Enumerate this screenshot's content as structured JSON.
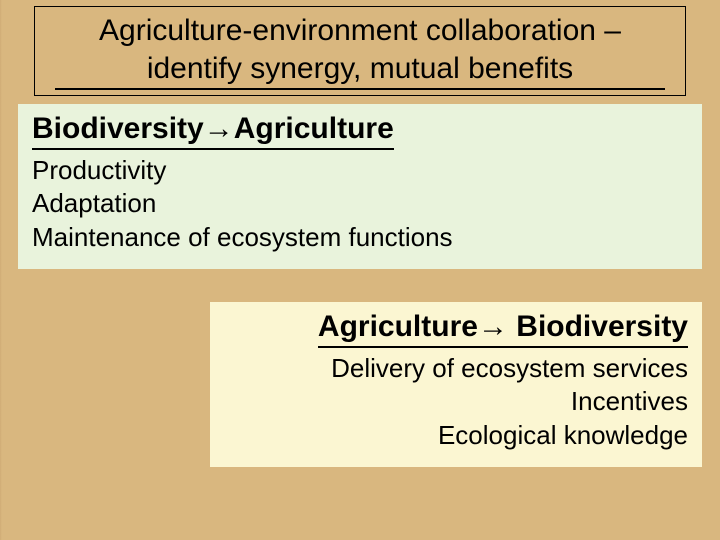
{
  "title": "Agriculture-environment collaboration – identify synergy, mutual benefits",
  "box1": {
    "heading_left": "Biodiversity",
    "heading_arrow": "→",
    "heading_right": "Agriculture",
    "items": [
      "Productivity",
      "Adaptation",
      "Maintenance of ecosystem functions"
    ],
    "background_color": "#e9f3dc"
  },
  "box2": {
    "heading_left": "Agriculture",
    "heading_arrow": "→",
    "heading_right": " Biodiversity",
    "items": [
      "Delivery of ecosystem services",
      "Incentives",
      "Ecological knowledge"
    ],
    "background_color": "#fbf6d2"
  },
  "slide": {
    "background_color": "#d9b77f",
    "title_fontsize": 30,
    "heading_fontsize": 30,
    "body_fontsize": 26,
    "font_family": "Comic Sans MS"
  }
}
